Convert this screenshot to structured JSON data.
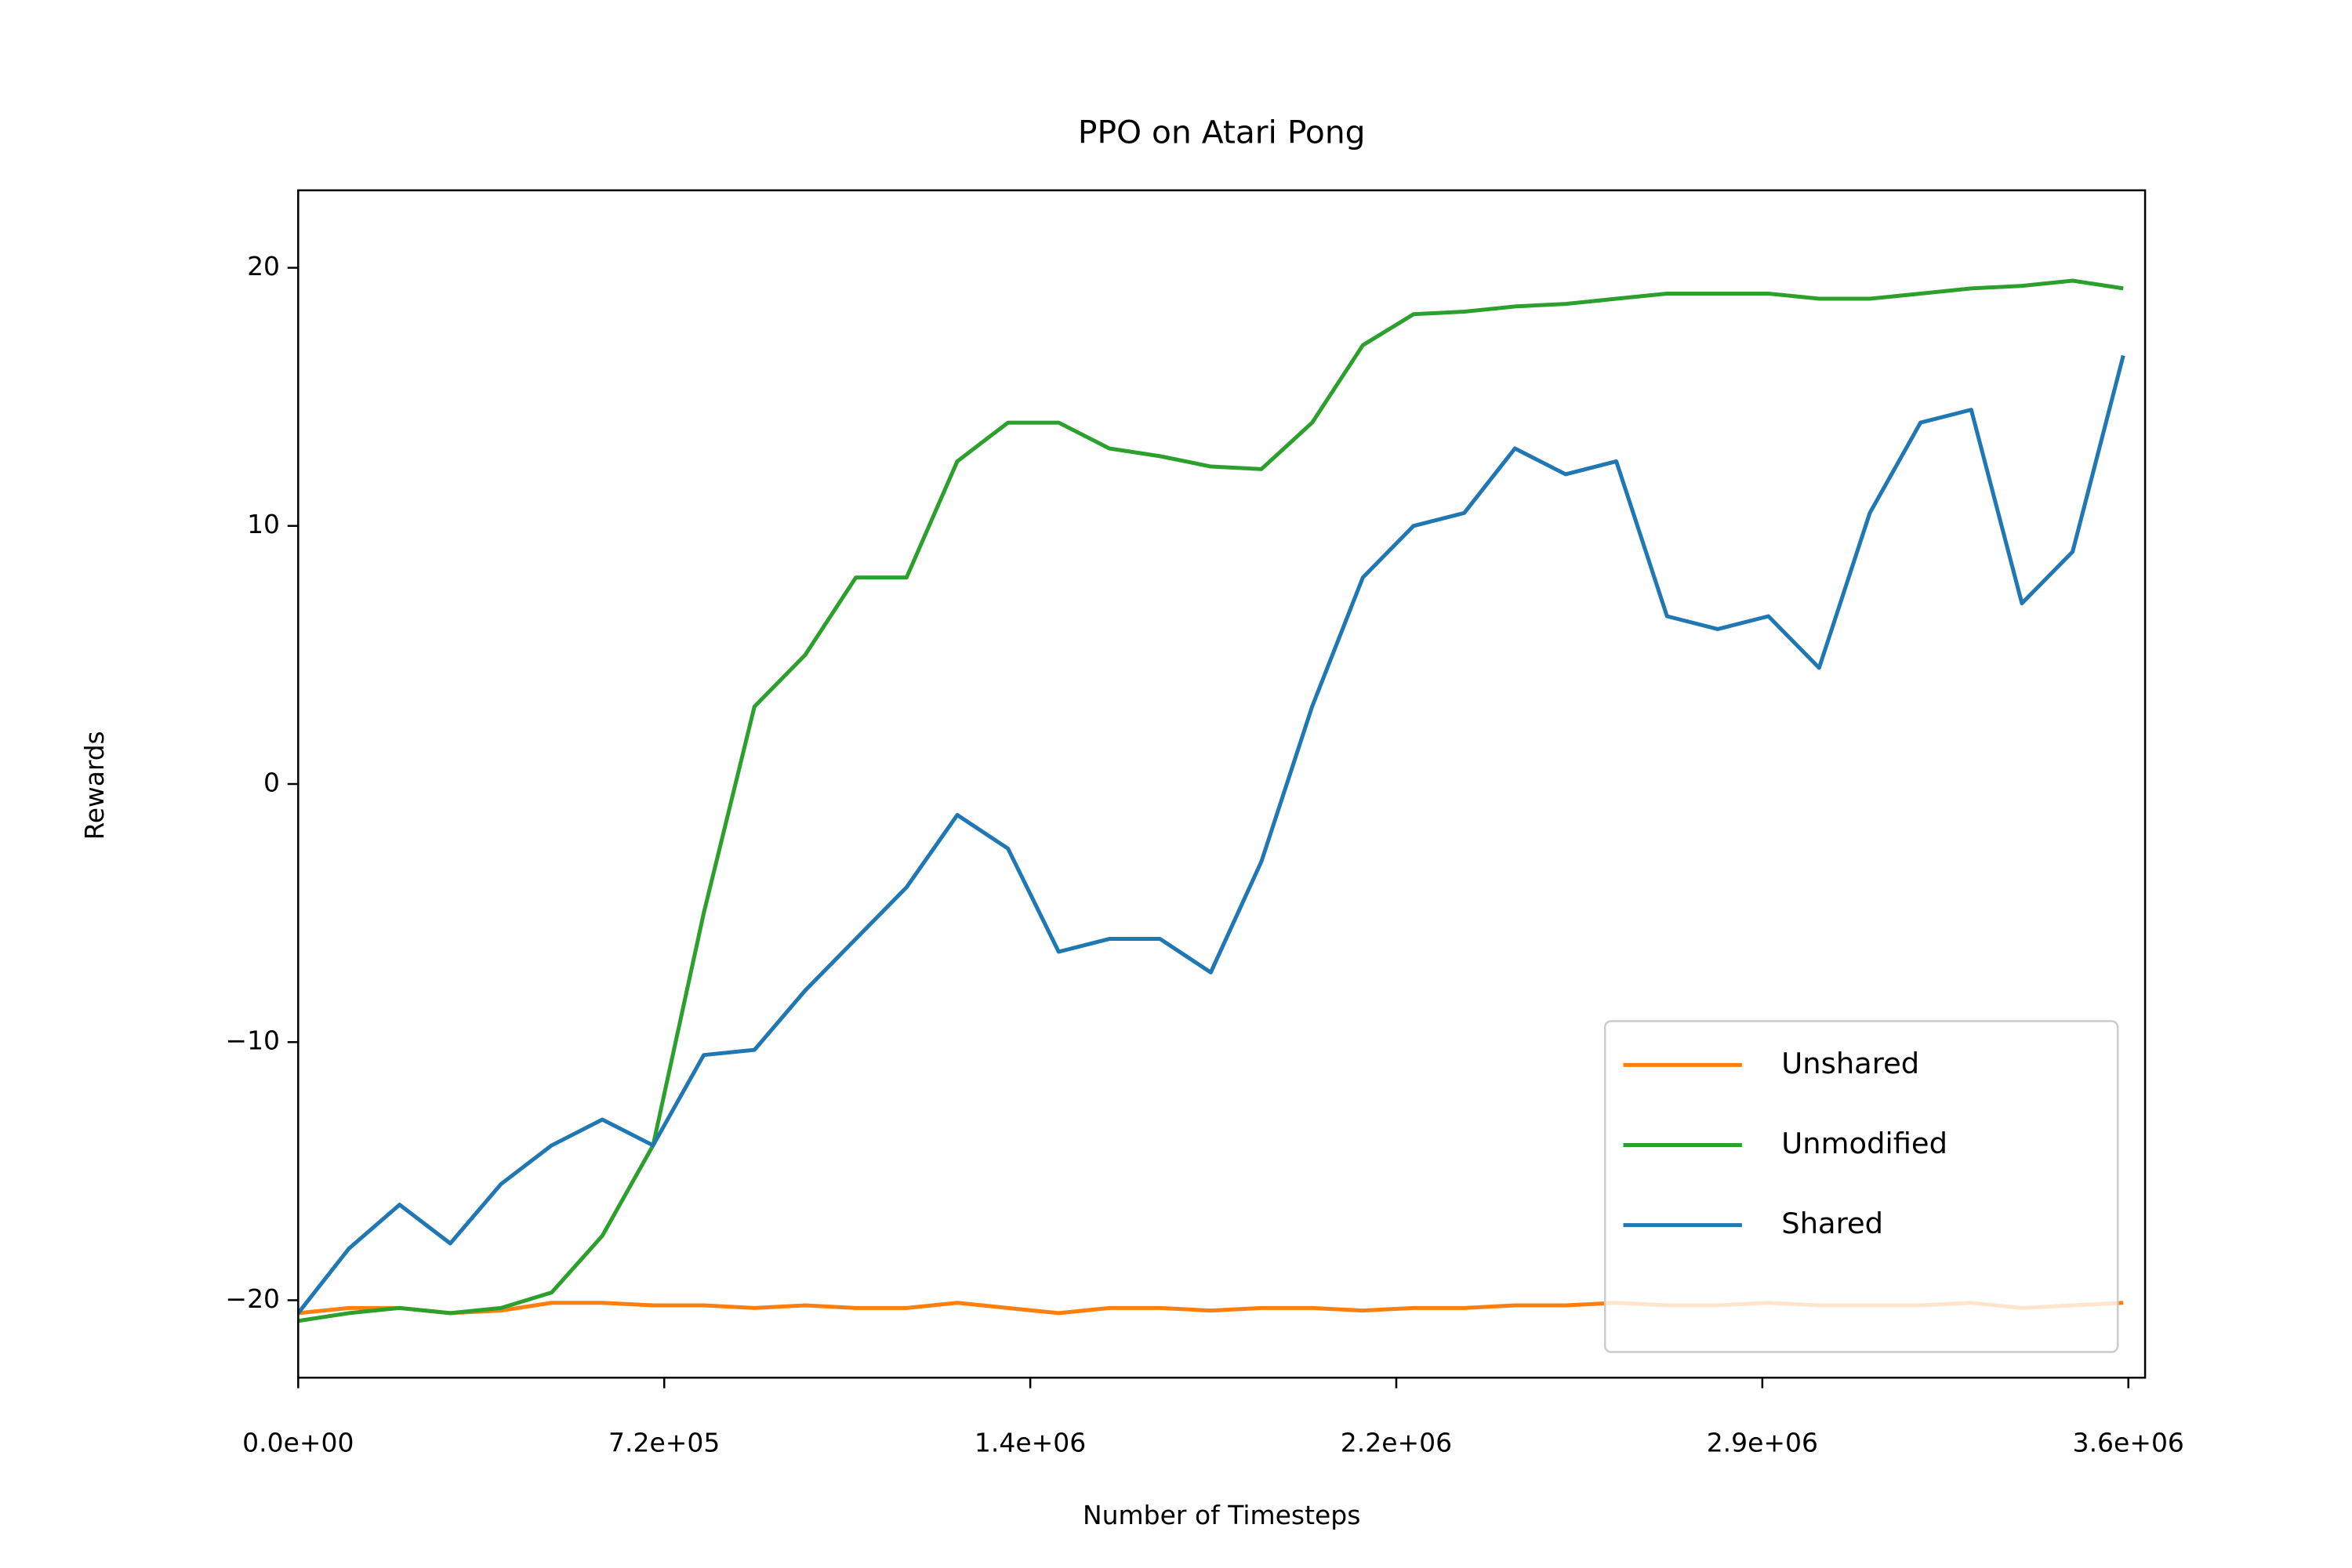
{
  "chart_data": {
    "type": "line",
    "title": "PPO on Atari Pong",
    "x_label": "Number of Timesteps",
    "y_label": "Rewards",
    "x": [
      0,
      100000,
      200000,
      300000,
      400000,
      500000,
      600000,
      700000,
      800000,
      900000,
      1000000,
      1100000,
      1200000,
      1300000,
      1400000,
      1500000,
      1600000,
      1700000,
      1800000,
      1900000,
      2000000,
      2100000,
      2200000,
      2300000,
      2400000,
      2500000,
      2600000,
      2700000,
      2800000,
      2900000,
      3000000,
      3100000,
      3200000,
      3300000,
      3400000,
      3500000,
      3600000
    ],
    "series": [
      {
        "name": "Unshared",
        "color": "#ff7f0e",
        "values": [
          -20.5,
          -20.3,
          -20.3,
          -20.5,
          -20.4,
          -20.1,
          -20.1,
          -20.2,
          -20.2,
          -20.3,
          -20.2,
          -20.3,
          -20.3,
          -20.1,
          -20.3,
          -20.5,
          -20.3,
          -20.3,
          -20.4,
          -20.3,
          -20.3,
          -20.4,
          -20.3,
          -20.3,
          -20.2,
          -20.2,
          -20.1,
          -20.2,
          -20.2,
          -20.1,
          -20.2,
          -20.2,
          -20.2,
          -20.1,
          -20.3,
          -20.2,
          -20.1
        ]
      },
      {
        "name": "Unmodified",
        "color": "#2ca02c",
        "values": [
          -20.8,
          -20.5,
          -20.3,
          -20.5,
          -20.3,
          -19.7,
          -17.5,
          -14,
          -5,
          3,
          5,
          8,
          8,
          12.5,
          14,
          14,
          13,
          12.7,
          12.3,
          12.2,
          14,
          17,
          18.2,
          18.3,
          18.5,
          18.6,
          18.8,
          19,
          19,
          19,
          18.8,
          18.8,
          19,
          19.2,
          19.3,
          19.5,
          19.2
        ]
      },
      {
        "name": "Shared",
        "color": "#1f77b4",
        "values": [
          -20.5,
          -18,
          -16.3,
          -17.8,
          -15.5,
          -14,
          -13,
          -14,
          -10.5,
          -10.3,
          -8,
          -6,
          -4,
          -1.2,
          -2.5,
          -6.5,
          -6,
          -6,
          -7.3,
          -3,
          3,
          8,
          10,
          10.5,
          13,
          12,
          12.5,
          6.5,
          6,
          6.5,
          4.5,
          10.5,
          14,
          14.5,
          7,
          9,
          16.6
        ]
      }
    ],
    "xlim": [
      0,
      3643000
    ],
    "ylim": [
      -23,
      23
    ],
    "xticks": [
      {
        "value": 0,
        "label": "0.0e+00"
      },
      {
        "value": 722000,
        "label": "7.2e+05"
      },
      {
        "value": 1444000,
        "label": "1.4e+06"
      },
      {
        "value": 2166000,
        "label": "2.2e+06"
      },
      {
        "value": 2888000,
        "label": "2.9e+06"
      },
      {
        "value": 3610000,
        "label": "3.6e+06"
      }
    ],
    "yticks": [
      {
        "value": -20,
        "label": "−20"
      },
      {
        "value": -10,
        "label": "−10"
      },
      0,
      10,
      20
    ],
    "legend": "lower right"
  }
}
